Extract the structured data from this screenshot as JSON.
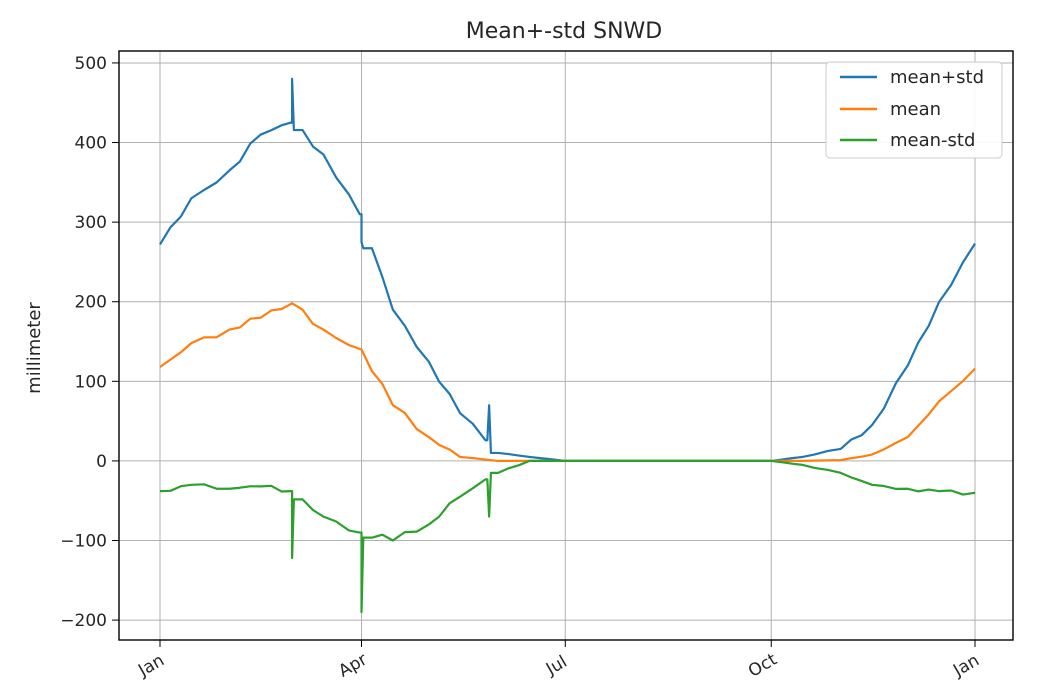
{
  "chart_data": {
    "type": "line",
    "title": "Mean+-std   SNWD",
    "xlabel": "",
    "ylabel": "millimeter",
    "x_ticks": [
      "Jan",
      "Apr",
      "Jul",
      "Oct",
      "Jan"
    ],
    "y_ticks": [
      "500",
      "400",
      "300",
      "200",
      "100",
      "0",
      "−100",
      "−200"
    ],
    "ylim": [
      -225,
      515
    ],
    "xlim": [
      "Jan 1",
      "Jan 1 (next year)"
    ],
    "grid": true,
    "legend_position": "top-right",
    "x": [
      "Jan 1",
      "Jan 15",
      "Feb 1",
      "Feb 15",
      "Mar 1",
      "Mar 15",
      "Apr 1",
      "Apr 15",
      "May 1",
      "May 15",
      "Jun 1",
      "Jun 15",
      "Jul 1",
      "Jul 15",
      "Aug 1",
      "Aug 15",
      "Sep 1",
      "Sep 15",
      "Oct 1",
      "Oct 15",
      "Nov 1",
      "Nov 15",
      "Dec 1",
      "Dec 15",
      "Dec 31"
    ],
    "series": [
      {
        "name": "mean+std",
        "color": "#1f77b4",
        "values": [
          272,
          330,
          365,
          410,
          425,
          385,
          310,
          190,
          125,
          60,
          10,
          5,
          0,
          0,
          0,
          0,
          0,
          0,
          0,
          5,
          15,
          45,
          120,
          200,
          273
        ]
      },
      {
        "name": "mean",
        "color": "#ff7f0e",
        "values": [
          118,
          148,
          165,
          180,
          198,
          165,
          140,
          70,
          30,
          5,
          0,
          0,
          0,
          0,
          0,
          0,
          0,
          0,
          0,
          0,
          1,
          8,
          30,
          75,
          116
        ]
      },
      {
        "name": "mean-std",
        "color": "#2ca02c",
        "values": [
          -38,
          -30,
          -35,
          -32,
          -38,
          -70,
          -90,
          -100,
          -80,
          -45,
          -15,
          0,
          0,
          0,
          0,
          0,
          0,
          0,
          0,
          -5,
          -15,
          -30,
          -35,
          -38,
          -40
        ]
      }
    ],
    "annotations": [
      "spike near Mar 1 in mean+std to about 480 and in mean-std to about -122",
      "spike near Apr 1 in mean+std to about 275 and in mean-std to about -190",
      "spike near late May in mean+std to about 70 and in mean-std to about -70"
    ]
  },
  "legend": {
    "items": [
      "mean+std",
      "mean",
      "mean-std"
    ]
  }
}
